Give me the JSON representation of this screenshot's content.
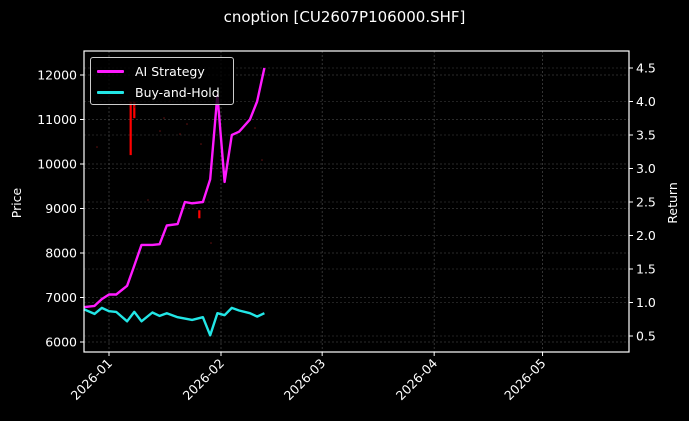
{
  "figure": {
    "title": "cnoption [CU2607P106000.SHF]",
    "background": "#000000"
  },
  "legend": {
    "items": [
      {
        "label": "AI Strategy",
        "color": "#ff1aff"
      },
      {
        "label": "Buy-and-Hold",
        "color": "#22e6e6"
      }
    ]
  },
  "chart_data": {
    "type": "line",
    "title": "cnoption [CU2607P106000.SHF]",
    "xlabel": "",
    "ylabel": "Price",
    "ylabel_right": "Return",
    "x_ticks": [
      "2026-01",
      "2026-02",
      "2026-03",
      "2026-04",
      "2026-05"
    ],
    "y_ticks_left": [
      6000,
      7000,
      8000,
      9000,
      10000,
      11000,
      12000
    ],
    "y_ticks_right": [
      0.5,
      1.0,
      1.5,
      2.0,
      2.5,
      3.0,
      3.5,
      4.0,
      4.5
    ],
    "ylim_left": [
      5800,
      12550
    ],
    "ylim_right": [
      0.3,
      4.7
    ],
    "grid": true,
    "legend_position": "upper left",
    "x": [
      "2025-12-25",
      "2025-12-28",
      "2025-12-30",
      "2026-01-01",
      "2026-01-03",
      "2026-01-06",
      "2026-01-08",
      "2026-01-10",
      "2026-01-13",
      "2026-01-15",
      "2026-01-17",
      "2026-01-20",
      "2026-01-22",
      "2026-01-24",
      "2026-01-27",
      "2026-01-29",
      "2026-01-31",
      "2026-02-02",
      "2026-02-04",
      "2026-02-06",
      "2026-02-09",
      "2026-02-11",
      "2026-02-13"
    ],
    "series": [
      {
        "name": "AI Strategy",
        "axis": "right",
        "color": "#ff1aff",
        "values": [
          0.93,
          0.95,
          1.05,
          1.12,
          1.12,
          1.25,
          1.55,
          1.86,
          1.86,
          1.87,
          2.15,
          2.17,
          2.5,
          2.48,
          2.5,
          2.84,
          4.1,
          2.8,
          3.5,
          3.55,
          3.73,
          4.0,
          4.5
        ]
      },
      {
        "name": "Buy-and-Hold",
        "axis": "right",
        "color": "#22e6e6",
        "values": [
          0.9,
          0.83,
          0.92,
          0.87,
          0.86,
          0.72,
          0.86,
          0.72,
          0.85,
          0.8,
          0.84,
          0.78,
          0.76,
          0.74,
          0.78,
          0.51,
          0.84,
          0.81,
          0.92,
          0.88,
          0.84,
          0.79,
          0.84
        ]
      }
    ],
    "candles": [
      {
        "x": "2026-01-07",
        "low": 10200,
        "high": 11400,
        "color": "#ff0000"
      },
      {
        "x": "2026-01-08",
        "low": 11030,
        "high": 11400,
        "color": "#ff0000"
      },
      {
        "x": "2026-01-26",
        "low": 8780,
        "high": 8960,
        "color": "#ff0000"
      }
    ]
  },
  "axes": {
    "left_label": "Price",
    "right_label": "Return",
    "x_tick_labels": [
      "2026-01",
      "2026-02",
      "2026-03",
      "2026-04",
      "2026-05"
    ],
    "y_left_tick_labels": [
      "12000",
      "11000",
      "10000",
      "9000",
      "8000",
      "7000",
      "6000"
    ],
    "y_right_tick_labels": [
      "4.5",
      "4.0",
      "3.5",
      "3.0",
      "2.5",
      "2.0",
      "1.5",
      "1.0",
      "0.5"
    ]
  }
}
